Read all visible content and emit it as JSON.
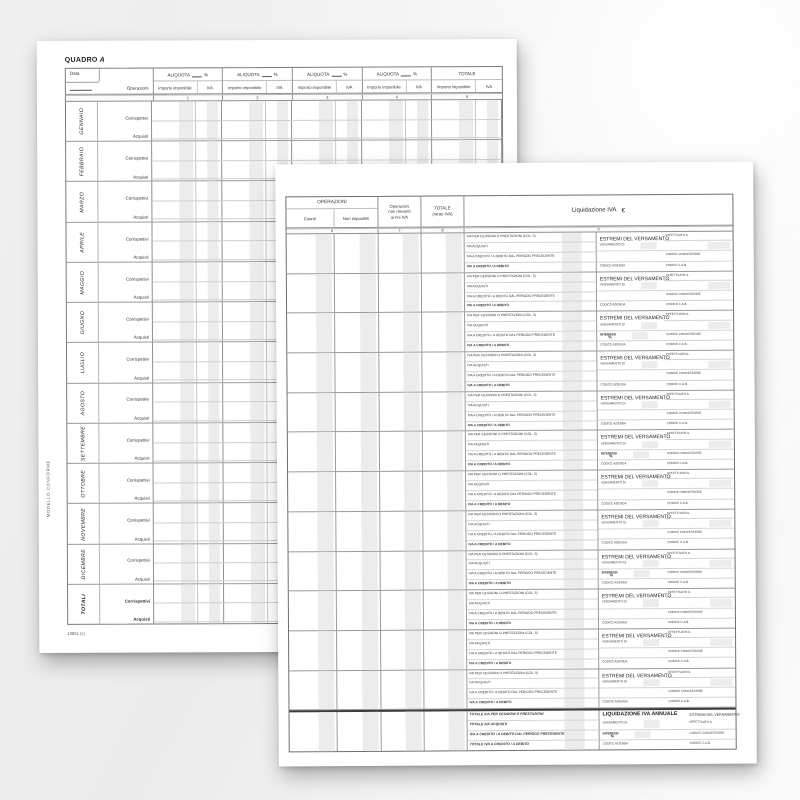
{
  "colors": {
    "paper": "#ffffff",
    "shade_band": "#ececec",
    "rule_dark": "#8f8f8f",
    "rule_light": "#d4d4d4",
    "backdrop": "#ebebeb"
  },
  "back_page": {
    "quadro_label": "QUADRO",
    "quadro_letter": "A",
    "header": {
      "data_label": "Data",
      "operazioni_label": "Operazioni",
      "aliquota_label": "ALIQUOTA",
      "percent_label": "%",
      "importo_label": "Importo imponibile",
      "iva_label": "IVA",
      "totale_label": "TOTALE",
      "column_numbers": [
        "1",
        "2",
        "3",
        "4",
        "5"
      ]
    },
    "row_labels": {
      "corrispettivi": "Corrispettivi",
      "acquisti": "Acquisti"
    },
    "months": [
      "GENNAIO",
      "FEBBRAIO",
      "MARZO",
      "APRILE",
      "MAGGIO",
      "GIUGNO",
      "LUGLIO",
      "AGOSTO",
      "SETTEMBRE",
      "OTTOBRE",
      "NOVEMBRE",
      "DICEMBRE"
    ],
    "totals_label": "TOTALI",
    "side_note": "MODELLO CONFORME",
    "footer_code": "13851 (c)"
  },
  "front_page": {
    "header": {
      "operazioni_label": "OPERAZIONI",
      "esenti_label": "Esenti",
      "non_imponibili_label": "Non imponibili",
      "non_rilevanti_line1": "Operazioni",
      "non_rilevanti_line2": "non rilevanti",
      "non_rilevanti_line3": "ai fini IVA",
      "totale_label": "TOTALE",
      "totale_sub": "(netto IVA)",
      "liquidazione_label": "Liquidazione IVA",
      "euro_symbol": "€",
      "column_numbers": [
        "6",
        "7",
        "8",
        "9"
      ]
    },
    "month_block": {
      "blocks_count": 12,
      "interessi_blocks": [
        3,
        6,
        9
      ],
      "row1": "IVA PER CESSIONI O PRESTAZIONI (COL. 5)",
      "row2": "IVA ACQUISTI",
      "row3": "IVA A CREDITO / A DEBITO DAL PERIODO PRECEDENTE",
      "row4": "IVA A CREDITO / A DEBITO",
      "estremi_title": "ESTREMI DEL VERSAMENTO",
      "effettuato": "EFFETTUATO IL",
      "versamento": "VERSAMENTO DI",
      "interessi": "INTERESSI",
      "percent": "%",
      "codice_concessione": "CODICE CONCESSIONE",
      "codice_azienda": "CODICE AZIENDA",
      "codice_cab": "CODICE C.A.B."
    },
    "annual_block": {
      "title": "LIQUIDAZIONE IVA ANNUALE",
      "estremi_title": "ESTREMI DEL VERSAMENTO:",
      "row1": "TOTALE IVA PER CESSIONI O PRESTAZIONI",
      "row2": "TOTALE IVA ACQUISTI",
      "row3": "IVA A CREDITO / A DEBITO DAL PERIODO PRECEDENTE",
      "row4": "TOTALE IVA A CREDITO / A DEBITO",
      "versamento": "VERSAMENTO DI",
      "effettuato": "EFFETTUATO IL",
      "interessi": "INTERESSI",
      "percent": "%",
      "codice_concessione": "CODICE CONCESSIONE",
      "codice_azienda": "CODICE AZIENDA",
      "codice_cab": "CODICE C.A.B."
    }
  }
}
